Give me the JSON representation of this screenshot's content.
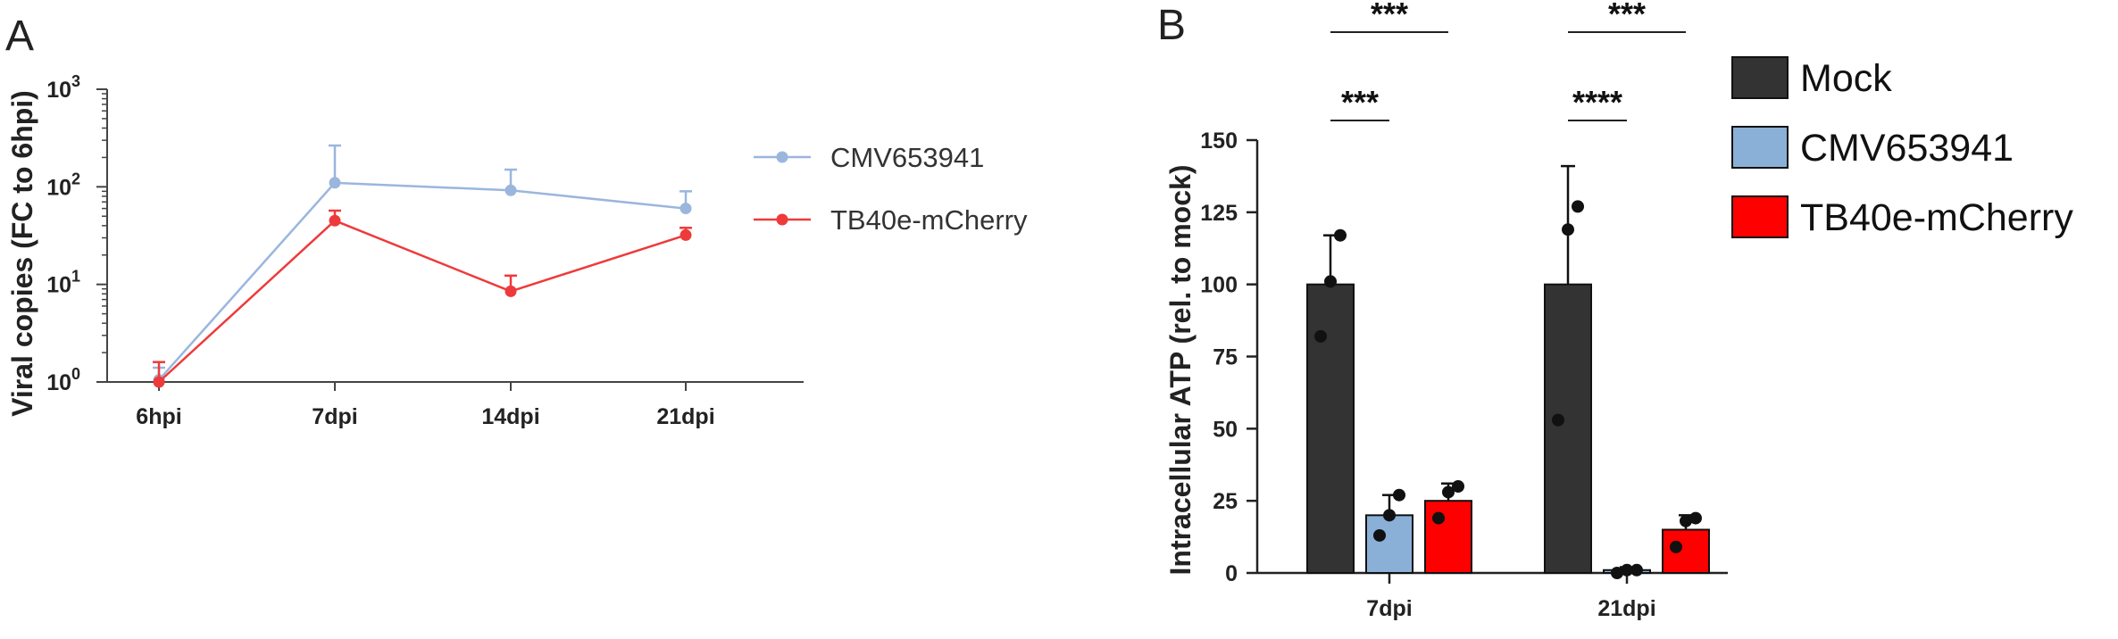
{
  "chart_data": [
    {
      "panel": "A",
      "type": "line",
      "ylabel": "Viral copies (FC to 6hpi)",
      "yscale": "log",
      "ylim": [
        1,
        1000
      ],
      "y_ticks": [
        {
          "base": "10",
          "exp": "0",
          "value": 1
        },
        {
          "base": "10",
          "exp": "1",
          "value": 10
        },
        {
          "base": "10",
          "exp": "2",
          "value": 100
        },
        {
          "base": "10",
          "exp": "3",
          "value": 1000
        }
      ],
      "categories": [
        "6hpi",
        "7dpi",
        "14dpi",
        "21dpi"
      ],
      "legend_position": "top-right",
      "series": [
        {
          "name": "CMV653941",
          "color": "#9ab6dd",
          "values": [
            1.05,
            110,
            92,
            60
          ],
          "error": [
            0.35,
            155,
            58,
            30
          ]
        },
        {
          "name": "TB40e-mCherry",
          "color": "#ee3a3a",
          "values": [
            1.0,
            45,
            8.5,
            32
          ],
          "error": [
            0.6,
            12,
            3.8,
            6
          ]
        }
      ]
    },
    {
      "panel": "B",
      "type": "bar",
      "ylabel": "Intracellular ATP (rel. to mock)",
      "ylim": [
        0,
        150
      ],
      "y_ticks": [
        "0",
        "25",
        "50",
        "75",
        "100",
        "125",
        "150"
      ],
      "categories": [
        "7dpi",
        "21dpi"
      ],
      "legend_position": "top-right",
      "series": [
        {
          "name": "Mock",
          "color": "#333333",
          "values": [
            100,
            100
          ],
          "sd": [
            17,
            41
          ],
          "points": [
            [
              82,
              101,
              117
            ],
            [
              53,
              119,
              127
            ]
          ]
        },
        {
          "name": "CMV653941",
          "color": "#8ab0d8",
          "values": [
            20,
            1
          ],
          "sd": [
            7,
            1
          ],
          "points": [
            [
              13,
              20,
              27
            ],
            [
              0,
              1,
              1
            ]
          ]
        },
        {
          "name": "TB40e-mCherry",
          "color": "#ff0000",
          "values": [
            25,
            15
          ],
          "sd": [
            6,
            5
          ],
          "points": [
            [
              19,
              28,
              30
            ],
            [
              9,
              18,
              19
            ]
          ]
        }
      ],
      "significance": [
        {
          "label": "***",
          "category": "7dpi",
          "from_series": 0,
          "to_series": 1,
          "level": "low"
        },
        {
          "label": "***",
          "category": "7dpi",
          "from_series": 0,
          "to_series": 2,
          "level": "high"
        },
        {
          "label": "****",
          "category": "21dpi",
          "from_series": 0,
          "to_series": 1,
          "level": "low"
        },
        {
          "label": "***",
          "category": "21dpi",
          "from_series": 0,
          "to_series": 2,
          "level": "high"
        }
      ]
    }
  ],
  "panels": {
    "a_label": "A",
    "b_label": "B"
  }
}
